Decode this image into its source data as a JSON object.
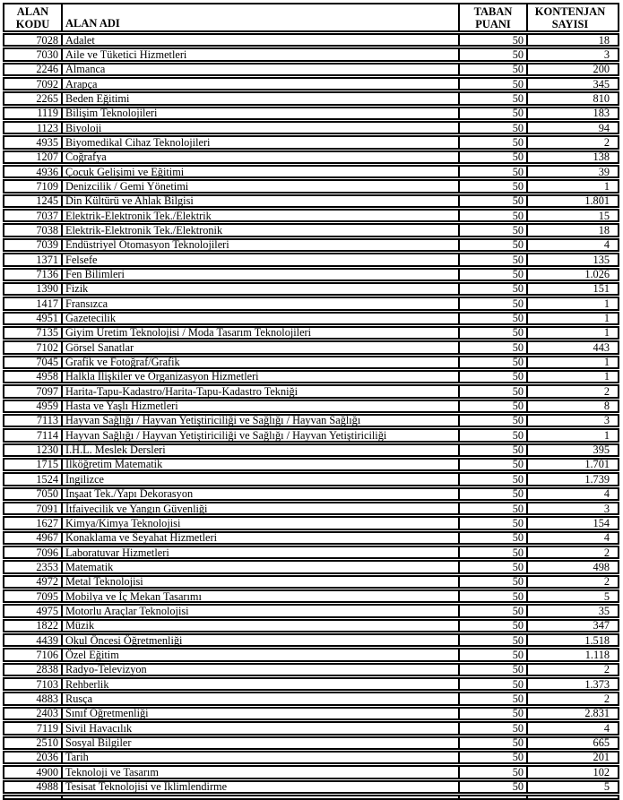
{
  "table": {
    "headers": {
      "alan_kodu": "ALAN\nKODU",
      "alan_adi": "ALAN ADI",
      "taban_puani": "TABAN\nPUANI",
      "kontenjan_sayisi": "KONTENJAN\nSAYISI"
    },
    "rows": [
      {
        "code": "7028",
        "name": "Adalet",
        "base": "50",
        "quota": "18"
      },
      {
        "code": "7030",
        "name": "Aile ve Tüketici Hizmetleri",
        "base": "50",
        "quota": "3"
      },
      {
        "code": "2246",
        "name": "Almanca",
        "base": "50",
        "quota": "200"
      },
      {
        "code": "7092",
        "name": "Arapça",
        "base": "50",
        "quota": "345"
      },
      {
        "code": "2265",
        "name": "Beden Eğitimi",
        "base": "50",
        "quota": "810"
      },
      {
        "code": "1119",
        "name": "Bilişim Teknolojileri",
        "base": "50",
        "quota": "183"
      },
      {
        "code": "1123",
        "name": "Biyoloji",
        "base": "50",
        "quota": "94"
      },
      {
        "code": "4935",
        "name": "Biyomedikal Cihaz Teknolojileri",
        "base": "50",
        "quota": "2"
      },
      {
        "code": "1207",
        "name": "Coğrafya",
        "base": "50",
        "quota": "138"
      },
      {
        "code": "4936",
        "name": "Çocuk Gelişimi ve Eğitimi",
        "base": "50",
        "quota": "39"
      },
      {
        "code": "7109",
        "name": "Denizcilik / Gemi Yönetimi",
        "base": "50",
        "quota": "1"
      },
      {
        "code": "1245",
        "name": "Din Kültürü ve Ahlak Bilgisi",
        "base": "50",
        "quota": "1.801"
      },
      {
        "code": "7037",
        "name": "Elektrik-Elektronik Tek./Elektrik",
        "base": "50",
        "quota": "15"
      },
      {
        "code": "7038",
        "name": "Elektrik-Elektronik Tek./Elektronik",
        "base": "50",
        "quota": "18"
      },
      {
        "code": "7039",
        "name": "Endüstriyel Otomasyon Teknolojileri",
        "base": "50",
        "quota": "4"
      },
      {
        "code": "1371",
        "name": "Felsefe",
        "base": "50",
        "quota": "135"
      },
      {
        "code": "7136",
        "name": "Fen Bilimleri",
        "base": "50",
        "quota": "1.026"
      },
      {
        "code": "1390",
        "name": "Fizik",
        "base": "50",
        "quota": "151"
      },
      {
        "code": "1417",
        "name": "Fransızca",
        "base": "50",
        "quota": "1"
      },
      {
        "code": "4951",
        "name": "Gazetecilik",
        "base": "50",
        "quota": "1"
      },
      {
        "code": "7135",
        "name": "Giyim Üretim Teknolojisi / Moda Tasarım Teknolojileri",
        "base": "50",
        "quota": "1"
      },
      {
        "code": "7102",
        "name": "Görsel Sanatlar",
        "base": "50",
        "quota": "443"
      },
      {
        "code": "7045",
        "name": "Grafik ve Fotoğraf/Grafik",
        "base": "50",
        "quota": "1"
      },
      {
        "code": "4958",
        "name": "Halkla İlişkiler ve Organizasyon Hizmetleri",
        "base": "50",
        "quota": "1"
      },
      {
        "code": "7097",
        "name": "Harita-Tapu-Kadastro/Harita-Tapu-Kadastro Tekniği",
        "base": "50",
        "quota": "2"
      },
      {
        "code": "4959",
        "name": "Hasta ve Yaşlı Hizmetleri",
        "base": "50",
        "quota": "8"
      },
      {
        "code": "7113",
        "name": "Hayvan Sağlığı / Hayvan Yetiştiriciliği ve Sağlığı / Hayvan Sağlığı",
        "base": "50",
        "quota": "3"
      },
      {
        "code": "7114",
        "name": "Hayvan Sağlığı / Hayvan Yetiştiriciliği ve Sağlığı / Hayvan Yetiştiriciliği",
        "base": "50",
        "quota": "1"
      },
      {
        "code": "1230",
        "name": "İ.H.L. Meslek Dersleri",
        "base": "50",
        "quota": "395"
      },
      {
        "code": "1715",
        "name": "İlköğretim Matematik",
        "base": "50",
        "quota": "1.701"
      },
      {
        "code": "1524",
        "name": "İngilizce",
        "base": "50",
        "quota": "1.739"
      },
      {
        "code": "7050",
        "name": "İnşaat Tek./Yapı Dekorasyon",
        "base": "50",
        "quota": "4"
      },
      {
        "code": "7091",
        "name": "İtfaiyecilik ve Yangın Güvenliği",
        "base": "50",
        "quota": "3"
      },
      {
        "code": "1627",
        "name": "Kimya/Kimya Teknolojisi",
        "base": "50",
        "quota": "154"
      },
      {
        "code": "4967",
        "name": "Konaklama ve Seyahat Hizmetleri",
        "base": "50",
        "quota": "4"
      },
      {
        "code": "7096",
        "name": "Laboratuvar Hizmetleri",
        "base": "50",
        "quota": "2"
      },
      {
        "code": "2353",
        "name": "Matematik",
        "base": "50",
        "quota": "498"
      },
      {
        "code": "4972",
        "name": "Metal Teknolojisi",
        "base": "50",
        "quota": "2"
      },
      {
        "code": "7095",
        "name": "Mobilya ve İç Mekan Tasarımı",
        "base": "50",
        "quota": "5"
      },
      {
        "code": "4975",
        "name": "Motorlu Araçlar Teknolojisi",
        "base": "50",
        "quota": "35"
      },
      {
        "code": "1822",
        "name": "Müzik",
        "base": "50",
        "quota": "347"
      },
      {
        "code": "4439",
        "name": "Okul Öncesi Öğretmenliği",
        "base": "50",
        "quota": "1.518"
      },
      {
        "code": "7106",
        "name": "Özel Eğitim",
        "base": "50",
        "quota": "1.118"
      },
      {
        "code": "2838",
        "name": "Radyo-Televizyon",
        "base": "50",
        "quota": "2"
      },
      {
        "code": "7103",
        "name": "Rehberlik",
        "base": "50",
        "quota": "1.373"
      },
      {
        "code": "4883",
        "name": "Rusça",
        "base": "50",
        "quota": "2"
      },
      {
        "code": "2403",
        "name": "Sınıf Öğretmenliği",
        "base": "50",
        "quota": "2.831"
      },
      {
        "code": "7119",
        "name": "Sivil Havacılık",
        "base": "50",
        "quota": "4"
      },
      {
        "code": "2510",
        "name": "Sosyal Bilgiler",
        "base": "50",
        "quota": "665"
      },
      {
        "code": "2036",
        "name": "Tarih",
        "base": "50",
        "quota": "201"
      },
      {
        "code": "4900",
        "name": "Teknoloji ve Tasarım",
        "base": "50",
        "quota": "102"
      },
      {
        "code": "4988",
        "name": "Tesisat Teknolojisi ve İklimlendirme",
        "base": "50",
        "quota": "5"
      }
    ]
  }
}
